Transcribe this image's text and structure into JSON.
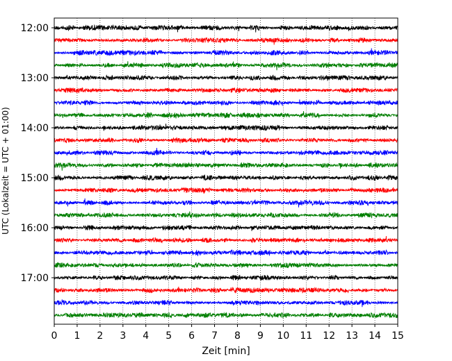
{
  "chart_data": {
    "type": "line",
    "title": "",
    "xlabel": "Zeit  [min]",
    "ylabel": "UTC (Lokalzeit = UTC + 01:00)",
    "xlim": [
      0,
      15
    ],
    "x_ticks": [
      "0",
      "1",
      "2",
      "3",
      "4",
      "5",
      "6",
      "7",
      "8",
      "9",
      "10",
      "11",
      "12",
      "13",
      "14",
      "15"
    ],
    "y_ticks": [
      "12:00",
      "13:00",
      "14:00",
      "15:00",
      "16:00",
      "17:00"
    ],
    "grid": "vertical dotted",
    "trace_interval_min": 15,
    "trace_start": "12:00",
    "trace_count": 24,
    "trace_colors": [
      "#000000",
      "#ff0000",
      "#0000ff",
      "#007f00"
    ]
  }
}
